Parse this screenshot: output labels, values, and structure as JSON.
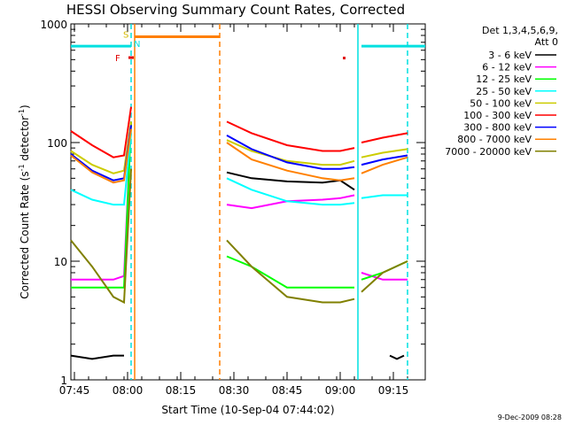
{
  "chart_data": {
    "type": "line",
    "title": "HESSI Observing Summary Count Rates, Corrected",
    "xlabel": "Start Time (10-Sep-04 07:44:02)",
    "ylabel_main": "Corrected Count Rate (s",
    "ylabel_sup1": "-1",
    "ylabel_mid": " detector",
    "ylabel_sup2": "-1",
    "ylabel_end": ")",
    "y_scale": "log",
    "ylim": [
      1,
      1000
    ],
    "xlim": [
      "07:44",
      "09:24"
    ],
    "y_ticks": [
      {
        "value": 1,
        "label": "1"
      },
      {
        "value": 10,
        "label": "10"
      },
      {
        "value": 100,
        "label": "100"
      },
      {
        "value": 1000,
        "label": "1000"
      }
    ],
    "x_ticks": [
      {
        "value": "07:45",
        "label": "07:45"
      },
      {
        "value": "08:00",
        "label": "08:00"
      },
      {
        "value": "08:15",
        "label": "08:15"
      },
      {
        "value": "08:30",
        "label": "08:30"
      },
      {
        "value": "08:45",
        "label": "08:45"
      },
      {
        "value": "09:00",
        "label": "09:00"
      },
      {
        "value": "09:15",
        "label": "09:15"
      }
    ],
    "legend_header": [
      "Det 1,3,4,5,6,9,",
      "Att 0"
    ],
    "legend_placement": "right",
    "footer": "9-Dec-2009 08:28",
    "flags": [
      {
        "label": "S",
        "color": "#d4b800"
      },
      {
        "label": "N",
        "color": "#00e0e0"
      },
      {
        "label": "F",
        "color": "#e00000"
      }
    ],
    "bars": [
      {
        "name": "night-cyan-1",
        "color": "#00e0e0",
        "start": "07:44",
        "end": "08:01",
        "level": 650
      },
      {
        "name": "saa-orange",
        "color": "#ff7f00",
        "start": "08:02",
        "end": "08:26",
        "level": 780
      },
      {
        "name": "night-cyan-2",
        "color": "#00e0e0",
        "start": "09:06",
        "end": "09:24",
        "level": 650
      }
    ],
    "vertical_lines": [
      {
        "time": "08:01",
        "color": "#00e0e0",
        "style": "dashed"
      },
      {
        "time": "08:02",
        "color": "#ff7f00",
        "style": "solid"
      },
      {
        "time": "08:26",
        "color": "#ff7f00",
        "style": "dashed"
      },
      {
        "time": "09:05",
        "color": "#00e0e0",
        "style": "solid"
      },
      {
        "time": "09:19",
        "color": "#00e0e0",
        "style": "dashed"
      }
    ],
    "series": [
      {
        "name": "3 - 6 keV",
        "color": "#000000",
        "seg1": {
          "times": [
            "07:44",
            "07:50",
            "07:56",
            "07:59"
          ],
          "values": [
            1.6,
            1.5,
            1.6,
            1.6
          ]
        },
        "seg2": {
          "times": [
            "08:28",
            "08:35",
            "08:45",
            "08:55",
            "09:00",
            "09:04"
          ],
          "values": [
            56,
            50,
            47,
            46,
            48,
            40
          ]
        },
        "seg3": {
          "times": [
            "09:14",
            "09:16",
            "09:18"
          ],
          "values": [
            1.6,
            1.5,
            1.6
          ]
        }
      },
      {
        "name": "6 - 12 keV",
        "color": "#ff00ff",
        "seg1": {
          "times": [
            "07:44",
            "07:50",
            "07:56",
            "07:59",
            "08:01"
          ],
          "values": [
            7,
            7,
            7,
            7.5,
            150
          ]
        },
        "seg2": {
          "times": [
            "08:28",
            "08:35",
            "08:45",
            "08:55",
            "09:00",
            "09:04"
          ],
          "values": [
            30,
            28,
            32,
            33,
            34,
            36
          ]
        },
        "seg3": {
          "times": [
            "09:06",
            "09:12",
            "09:19"
          ],
          "values": [
            8,
            7,
            7
          ]
        }
      },
      {
        "name": "12 - 25 keV",
        "color": "#00ff00",
        "seg1": {
          "times": [
            "07:44",
            "07:50",
            "07:56",
            "07:59",
            "08:01"
          ],
          "values": [
            6,
            6,
            6,
            6,
            150
          ]
        },
        "seg2": {
          "times": [
            "08:28",
            "08:35",
            "08:45",
            "08:55",
            "09:00",
            "09:04"
          ],
          "values": [
            11,
            9,
            6,
            6,
            6,
            6
          ]
        },
        "seg3": {
          "times": [
            "09:06",
            "09:12",
            "09:19"
          ],
          "values": [
            7,
            8,
            10
          ]
        }
      },
      {
        "name": "25 - 50 keV",
        "color": "#00ffff",
        "seg1": {
          "times": [
            "07:44",
            "07:50",
            "07:56",
            "07:59",
            "08:01"
          ],
          "values": [
            40,
            33,
            30,
            30,
            120
          ]
        },
        "seg2": {
          "times": [
            "08:28",
            "08:35",
            "08:45",
            "08:55",
            "09:00",
            "09:04"
          ],
          "values": [
            50,
            40,
            32,
            30,
            30,
            31
          ]
        },
        "seg3": {
          "times": [
            "09:06",
            "09:12",
            "09:19"
          ],
          "values": [
            34,
            36,
            36
          ]
        }
      },
      {
        "name": "50 - 100 keV",
        "color": "#cccc00",
        "seg1": {
          "times": [
            "07:44",
            "07:50",
            "07:56",
            "07:59",
            "08:01"
          ],
          "values": [
            85,
            65,
            55,
            58,
            150
          ]
        },
        "seg2": {
          "times": [
            "08:28",
            "08:35",
            "08:45",
            "08:55",
            "09:00",
            "09:04"
          ],
          "values": [
            105,
            85,
            70,
            65,
            65,
            70
          ]
        },
        "seg3": {
          "times": [
            "09:06",
            "09:12",
            "09:19"
          ],
          "values": [
            75,
            82,
            88
          ]
        }
      },
      {
        "name": "100 - 300 keV",
        "color": "#ff0000",
        "seg1": {
          "times": [
            "07:44",
            "07:50",
            "07:56",
            "07:59",
            "08:01"
          ],
          "values": [
            125,
            95,
            75,
            78,
            200
          ]
        },
        "seg2": {
          "times": [
            "08:28",
            "08:35",
            "08:45",
            "08:55",
            "09:00",
            "09:04"
          ],
          "values": [
            150,
            120,
            95,
            85,
            85,
            90
          ]
        },
        "seg3": {
          "times": [
            "09:06",
            "09:12",
            "09:19"
          ],
          "values": [
            100,
            110,
            120
          ]
        }
      },
      {
        "name": "300 - 800 keV",
        "color": "#0000ff",
        "seg1": {
          "times": [
            "07:44",
            "07:50",
            "07:56",
            "07:59",
            "08:01"
          ],
          "values": [
            80,
            58,
            48,
            50,
            140
          ]
        },
        "seg2": {
          "times": [
            "08:28",
            "08:35",
            "08:45",
            "08:55",
            "09:00",
            "09:04"
          ],
          "values": [
            115,
            88,
            68,
            60,
            60,
            62
          ]
        },
        "seg3": {
          "times": [
            "09:06",
            "09:12",
            "09:19"
          ],
          "values": [
            65,
            72,
            78
          ]
        }
      },
      {
        "name": "800 - 7000 keV",
        "color": "#ff8000",
        "seg1": {
          "times": [
            "07:44",
            "07:50",
            "07:56",
            "07:59",
            "08:01"
          ],
          "values": [
            78,
            56,
            46,
            48,
            130
          ]
        },
        "seg2": {
          "times": [
            "08:28",
            "08:35",
            "08:45",
            "08:55",
            "09:00",
            "09:04"
          ],
          "values": [
            100,
            72,
            58,
            50,
            48,
            50
          ]
        },
        "seg3": {
          "times": [
            "09:06",
            "09:12",
            "09:19"
          ],
          "values": [
            55,
            65,
            75
          ]
        }
      },
      {
        "name": "7000 - 20000 keV",
        "color": "#808000",
        "seg1": {
          "times": [
            "07:44",
            "07:50",
            "07:56",
            "07:59",
            "08:01"
          ],
          "values": [
            15,
            9,
            5,
            4.5,
            60
          ]
        },
        "seg2": {
          "times": [
            "08:28",
            "08:35",
            "08:45",
            "08:55",
            "09:00",
            "09:04"
          ],
          "values": [
            15,
            9,
            5,
            4.5,
            4.5,
            4.8
          ]
        },
        "seg3": {
          "times": [
            "09:06",
            "09:12",
            "09:19"
          ],
          "values": [
            5.5,
            8,
            10
          ]
        }
      }
    ]
  }
}
